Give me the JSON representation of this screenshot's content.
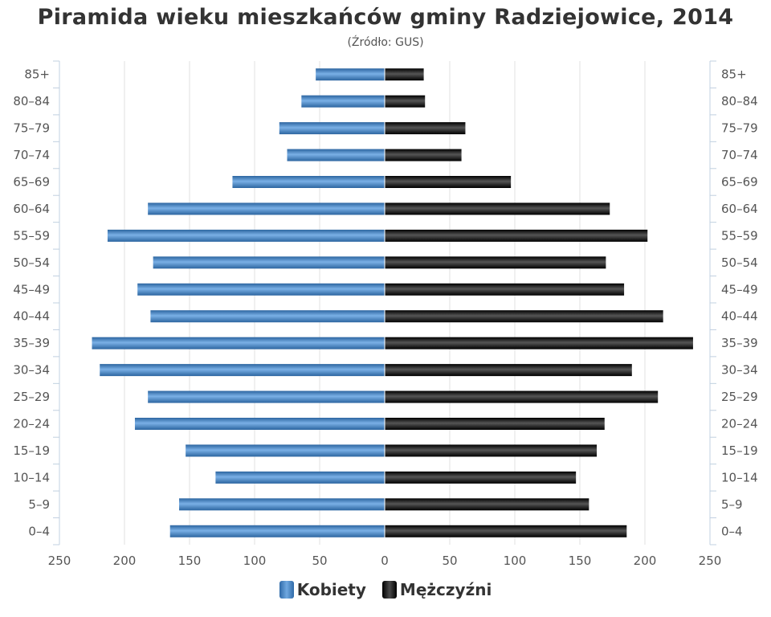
{
  "chart_data": {
    "type": "bar",
    "title": "Piramida wieku mieszkańców gminy Radziejowice, 2014",
    "subtitle": "(Źródło: GUS)",
    "orientation": "horizontal-pyramid",
    "categories": [
      "85+",
      "80–84",
      "75–79",
      "70–74",
      "65–69",
      "60–64",
      "55–59",
      "50–54",
      "45–49",
      "40–44",
      "35–39",
      "30–34",
      "25–29",
      "20–24",
      "15–19",
      "10–14",
      "5–9",
      "0–4"
    ],
    "series": [
      {
        "name": "Kobiety",
        "color": "#3f7fc0",
        "values": [
          53,
          64,
          81,
          75,
          117,
          182,
          213,
          178,
          190,
          180,
          225,
          219,
          182,
          192,
          153,
          130,
          158,
          165
        ]
      },
      {
        "name": "Mężczyźni",
        "color": "#111111",
        "values": [
          30,
          31,
          62,
          59,
          97,
          173,
          202,
          170,
          184,
          214,
          237,
          190,
          210,
          169,
          163,
          147,
          157,
          186
        ]
      }
    ],
    "xlim": [
      -250,
      250
    ],
    "x_ticks": [
      "250",
      "200",
      "150",
      "100",
      "50",
      "0",
      "50",
      "100",
      "150",
      "200",
      "250"
    ],
    "grid": true,
    "legend_position": "bottom-center"
  }
}
